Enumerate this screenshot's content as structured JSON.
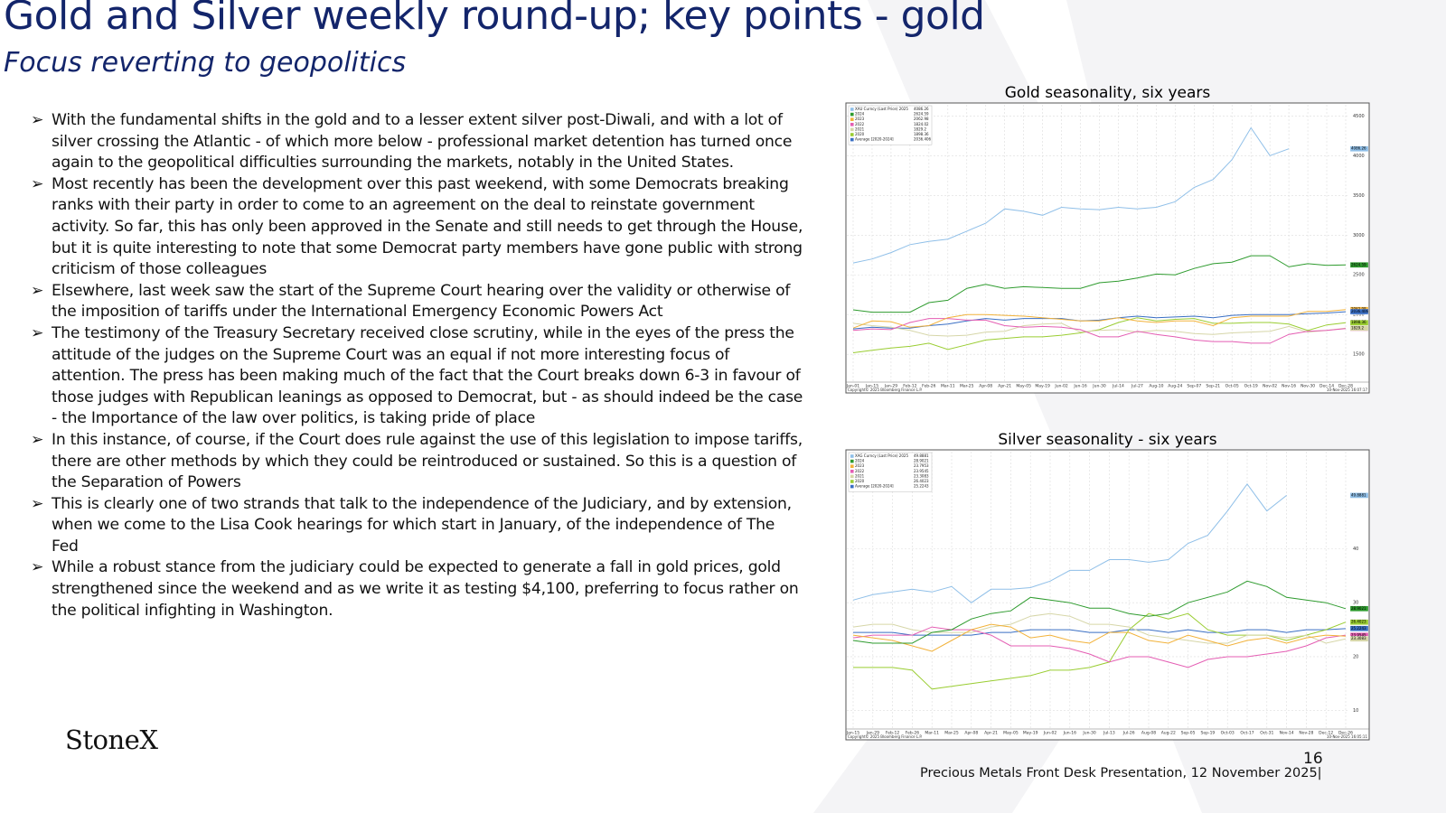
{
  "header": {
    "title": "Gold and Silver weekly round-up; key points - gold",
    "subtitle": "Focus reverting to geopolitics"
  },
  "bullets": [
    "With the fundamental shifts in the gold and to a lesser extent silver post-Diwali, and with a lot of silver crossing the Atlantic - of which more below - professional market detention has turned once again to the geopolitical difficulties surrounding the markets, notably in the United States.",
    "Most recently has been the development over this past weekend, with some Democrats breaking ranks with their party in order to come to an agreement on the deal to reinstate government activity. So far, this has only been approved in the Senate and still needs to get through the House, but it is quite interesting to note that some Democrat party members have gone public with strong criticism of those colleagues",
    "Elsewhere, last week saw the start of the Supreme Court hearing over the validity or otherwise of the imposition of tariffs under the International Emergency Economic Powers Act",
    "The testimony of the Treasury Secretary received close scrutiny, while in the eyes of the press the attitude of the judges on the Supreme Court was an equal if not more interesting focus of attention. The press has been making much of the fact that the Court breaks down 6-3 in favour of those judges with Republican leanings as opposed to Democrat, but - as should indeed be the case - the  Importance of the law over politics, is taking pride of place",
    "In this instance, of course, if the Court does rule against the use of this legislation to impose tariffs, there are other methods by which they could be reintroduced or sustained. So this is a question of the Separation of Powers",
    "This is clearly one of two strands that talk to the independence of the Judiciary, and by extension, when we come to the Lisa Cook hearings for which start in January, of the independence of The Fed",
    "While a robust stance from the judiciary could be expected to generate a fall in gold prices, gold strengthened since the weekend and as we write it as testing $4,100, preferring to focus rather on the political infighting in Washington."
  ],
  "chart_data": [
    {
      "type": "line",
      "title": "Gold seasonality, six years",
      "copyright": "Copyright© 2025 Bloomberg Finance L.P.",
      "timestamp": "10-Nov-2025 16:07:17",
      "categories": [
        "Jan-01",
        "Jan-15",
        "Jan-29",
        "Feb-12",
        "Feb-26",
        "Mar-11",
        "Mar-25",
        "Apr-08",
        "Apr-21",
        "May-05",
        "May-19",
        "Jun-02",
        "Jun-16",
        "Jun-30",
        "Jul-14",
        "Jul-27",
        "Aug-10",
        "Aug-24",
        "Sep-07",
        "Sep-21",
        "Oct-05",
        "Oct-19",
        "Nov-02",
        "Nov-16",
        "Nov-30",
        "Dec-14",
        "Dec-28"
      ],
      "ylim": [
        1150,
        4640
      ],
      "yticks": [
        1500,
        2000,
        2500,
        3000,
        3500,
        4000,
        4500
      ],
      "grid": true,
      "series": [
        {
          "name": "XAU Curncy (Last Price) 2025",
          "last": 4086.26,
          "color": "#8fbfe8",
          "values": [
            2650,
            2700,
            2780,
            2880,
            2920,
            2950,
            3050,
            3150,
            3330,
            3300,
            3250,
            3350,
            3330,
            3320,
            3350,
            3330,
            3350,
            3420,
            3600,
            3700,
            3950,
            4350,
            4000,
            4086,
            null,
            null,
            null
          ]
        },
        {
          "name": "2024",
          "last": 2624.59,
          "color": "#2e9b2e",
          "values": [
            2060,
            2030,
            2030,
            2030,
            2150,
            2180,
            2330,
            2380,
            2330,
            2350,
            2340,
            2330,
            2330,
            2400,
            2420,
            2460,
            2510,
            2500,
            2580,
            2640,
            2660,
            2740,
            2740,
            2600,
            2640,
            2620,
            2625
          ]
        },
        {
          "name": "2023",
          "last": 2062.98,
          "color": "#f2b23a",
          "values": [
            1830,
            1920,
            1910,
            1840,
            1860,
            1960,
            2000,
            2000,
            1990,
            1980,
            1960,
            1940,
            1920,
            1920,
            1960,
            1920,
            1900,
            1920,
            1920,
            1860,
            1960,
            1980,
            1980,
            1980,
            2040,
            2040,
            2063
          ]
        },
        {
          "name": "2022",
          "last": 1824.02,
          "color": "#e45db3",
          "values": [
            1800,
            1820,
            1810,
            1900,
            1950,
            1950,
            1930,
            1930,
            1860,
            1840,
            1850,
            1840,
            1810,
            1720,
            1720,
            1790,
            1750,
            1720,
            1680,
            1660,
            1660,
            1640,
            1640,
            1750,
            1790,
            1800,
            1824
          ]
        },
        {
          "name": "2021",
          "last": 1829.2,
          "color": "#d6d6a8",
          "values": [
            1890,
            1860,
            1840,
            1800,
            1740,
            1730,
            1740,
            1780,
            1790,
            1860,
            1880,
            1890,
            1780,
            1800,
            1810,
            1780,
            1800,
            1790,
            1760,
            1750,
            1770,
            1780,
            1790,
            1850,
            1780,
            1800,
            1829
          ]
        },
        {
          "name": "2020",
          "last": 1898.36,
          "color": "#9acd32",
          "values": [
            1520,
            1550,
            1580,
            1600,
            1640,
            1560,
            1620,
            1680,
            1700,
            1720,
            1720,
            1740,
            1770,
            1810,
            1900,
            1960,
            1920,
            1940,
            1950,
            1890,
            1890,
            1900,
            1900,
            1880,
            1800,
            1870,
            1898
          ]
        },
        {
          "name": "Average  [2020-2024]",
          "last": 2036.406,
          "color": "#3a6fc4",
          "values": [
            1820,
            1840,
            1830,
            1830,
            1860,
            1880,
            1920,
            1950,
            1930,
            1950,
            1950,
            1950,
            1920,
            1930,
            1960,
            1980,
            1960,
            1970,
            1980,
            1960,
            1990,
            2000,
            2000,
            2000,
            2010,
            2020,
            2036
          ]
        }
      ]
    },
    {
      "type": "line",
      "title": "Silver seasonality - six years",
      "copyright": "Copyright© 2025 Bloomberg Finance L.P.",
      "timestamp": "10-Nov-2025 16:05:11",
      "categories": [
        "Jan-15",
        "Jan-29",
        "Feb-12",
        "Feb-26",
        "Mar-11",
        "Mar-25",
        "Apr-08",
        "Apr-21",
        "May-05",
        "May-19",
        "Jun-02",
        "Jun-16",
        "Jun-30",
        "Jul-13",
        "Jul-26",
        "Aug-08",
        "Aug-22",
        "Sep-05",
        "Sep-19",
        "Oct-03",
        "Oct-17",
        "Oct-31",
        "Nov-14",
        "Nov-28",
        "Dec-12",
        "Dec-26"
      ],
      "ylim": [
        6.6,
        58
      ],
      "yticks": [
        10,
        20,
        30,
        40
      ],
      "grid": true,
      "series": [
        {
          "name": "XAG Curncy (Last Price) 2025",
          "last": 49.8881,
          "color": "#8fbfe8",
          "values": [
            30.5,
            31.5,
            32,
            32.5,
            32,
            33,
            30,
            32.5,
            32.5,
            32.8,
            34,
            36,
            36,
            38,
            38,
            37.5,
            38,
            41,
            42.5,
            47,
            52,
            47,
            49.89,
            null,
            null,
            null
          ]
        },
        {
          "name": "2024",
          "last": 28.9021,
          "color": "#2e9b2e",
          "values": [
            23,
            22.5,
            22.5,
            22.5,
            24.5,
            25,
            27,
            28,
            28.5,
            31,
            30.5,
            30,
            29,
            29,
            28,
            27.5,
            28,
            30,
            31,
            32,
            34,
            33,
            31,
            30.5,
            30,
            28.9
          ]
        },
        {
          "name": "2023",
          "last": 23.7953,
          "color": "#f2b23a",
          "values": [
            24,
            23.5,
            23,
            22,
            21,
            23,
            25,
            26,
            25.5,
            23.5,
            24,
            23,
            22.5,
            24.5,
            24.5,
            23,
            22.5,
            24,
            23,
            22,
            23,
            23.5,
            22.5,
            23.5,
            24,
            23.8
          ]
        },
        {
          "name": "2022",
          "last": 23.9545,
          "color": "#e45db3",
          "values": [
            23.5,
            24,
            24,
            24,
            25.5,
            25,
            25,
            24,
            22,
            22,
            22,
            21.5,
            20.5,
            19,
            20,
            20,
            19,
            18,
            19.5,
            20,
            20,
            20.5,
            21,
            22,
            23.5,
            24
          ]
        },
        {
          "name": "2021",
          "last": 23.3083,
          "color": "#d6d6a8",
          "values": [
            25.5,
            26,
            26,
            25,
            24.5,
            24.5,
            24.5,
            25.5,
            26,
            27.5,
            28,
            27.5,
            26,
            26,
            25.5,
            24,
            23.5,
            23,
            22.5,
            22.5,
            24,
            24,
            23.5,
            24,
            22.5,
            23.3
          ]
        },
        {
          "name": "2020",
          "last": 26.4023,
          "color": "#9acd32",
          "values": [
            18,
            18,
            18,
            17.5,
            14,
            14.5,
            15,
            15.5,
            16,
            16.5,
            17.5,
            17.5,
            18,
            19,
            25,
            28,
            27,
            28,
            25,
            24,
            24,
            24,
            23,
            24,
            25,
            26.4
          ]
        },
        {
          "name": "Average  [2020-2024]",
          "last": 25.2243,
          "color": "#3a6fc4",
          "values": [
            24.5,
            24.5,
            24.5,
            24,
            24,
            24,
            24,
            24.5,
            24.5,
            25,
            25,
            25,
            24.5,
            24.5,
            25,
            25,
            24.5,
            25,
            24.5,
            24.5,
            25,
            25,
            24.5,
            25,
            25,
            25.2
          ]
        }
      ]
    }
  ],
  "footer": {
    "logo": "StoneX",
    "page": "16",
    "note": "Precious Metals Front Desk Presentation, 12 November 2025|"
  }
}
